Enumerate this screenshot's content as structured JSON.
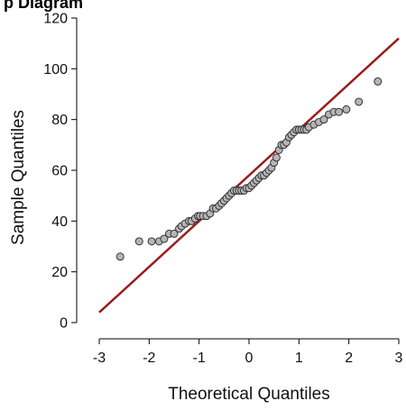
{
  "header_fragment": "p Diagram",
  "chart_data": {
    "type": "scatter",
    "subtype": "qq-plot",
    "title": "",
    "xlabel": "Theoretical Quantiles",
    "ylabel": "Sample Quantiles",
    "xlim": [
      -3,
      3
    ],
    "ylim": [
      0,
      120
    ],
    "x_ticks": [
      -3,
      -2,
      -1,
      0,
      1,
      2,
      3
    ],
    "y_ticks": [
      0,
      20,
      40,
      60,
      80,
      100,
      120
    ],
    "x_tick_labels": [
      "-3",
      "-2",
      "-1",
      "0",
      "1",
      "2",
      "3"
    ],
    "y_tick_labels": [
      "0",
      "20",
      "40",
      "60",
      "80",
      "100",
      "120"
    ],
    "grid": false,
    "points": {
      "x": [
        -2.58,
        -2.2,
        -1.95,
        -1.8,
        -1.7,
        -1.6,
        -1.5,
        -1.4,
        -1.35,
        -1.28,
        -1.2,
        -1.15,
        -1.08,
        -1.02,
        -0.98,
        -0.92,
        -0.85,
        -0.78,
        -0.72,
        -0.66,
        -0.6,
        -0.55,
        -0.5,
        -0.45,
        -0.4,
        -0.35,
        -0.3,
        -0.25,
        -0.2,
        -0.15,
        -0.1,
        -0.05,
        0.0,
        0.05,
        0.1,
        0.15,
        0.2,
        0.25,
        0.3,
        0.35,
        0.4,
        0.45,
        0.5,
        0.55,
        0.6,
        0.65,
        0.7,
        0.75,
        0.8,
        0.85,
        0.9,
        0.95,
        1.0,
        1.05,
        1.1,
        1.15,
        1.2,
        1.3,
        1.4,
        1.5,
        1.6,
        1.7,
        1.8,
        1.95,
        2.2,
        2.58
      ],
      "y": [
        26,
        32,
        32,
        32,
        33,
        35,
        35,
        37,
        38,
        39,
        40,
        40,
        41,
        42,
        42,
        42,
        42,
        43,
        45,
        45,
        46,
        47,
        48,
        49,
        50,
        51,
        52,
        52,
        52,
        52,
        52,
        53,
        53,
        54,
        55,
        56,
        57,
        58,
        58,
        59,
        60,
        61,
        63,
        65,
        68,
        70,
        70,
        71,
        73,
        74,
        75,
        76,
        76,
        76,
        76,
        76,
        77,
        78,
        79,
        80,
        82,
        83,
        83,
        84,
        87,
        95
      ]
    },
    "reference_line": {
      "x": [
        -3,
        3
      ],
      "y": [
        4,
        112
      ]
    },
    "colors": {
      "point_fill": "#b5b5b5",
      "point_stroke": "#333333",
      "line": "#9b1c1c",
      "axis": "#000000"
    }
  }
}
